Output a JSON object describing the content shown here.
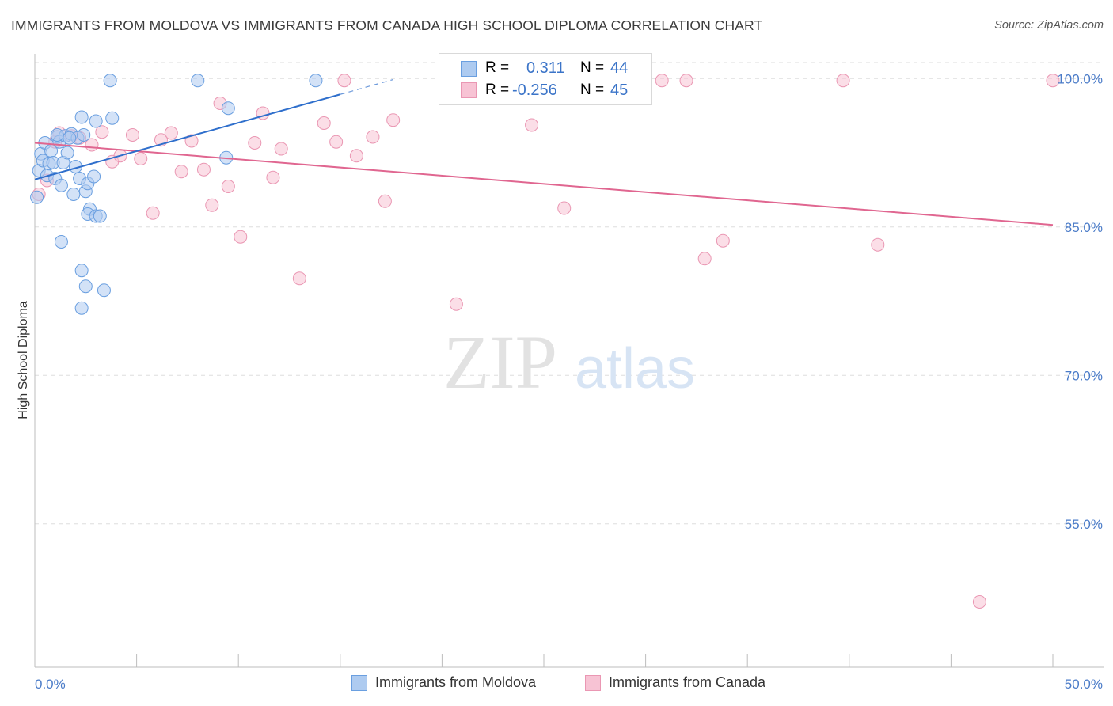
{
  "title": "IMMIGRANTS FROM MOLDOVA VS IMMIGRANTS FROM CANADA HIGH SCHOOL DIPLOMA CORRELATION CHART",
  "source": "Source: ZipAtlas.com",
  "watermark": {
    "zip": "ZIP",
    "atlas": "atlas"
  },
  "legend": {
    "rows": [
      {
        "r_label": "R =",
        "r_value": "0.311",
        "n_label": "N =",
        "n_value": "44"
      },
      {
        "r_label": "R =",
        "r_value": "-0.256",
        "n_label": "N =",
        "n_value": "45"
      }
    ]
  },
  "colors": {
    "moldova_fill": "#aecbf0",
    "moldova_stroke": "#6a9fe0",
    "moldova_line": "#2f6fcc",
    "canada_fill": "#f7c3d4",
    "canada_stroke": "#ea97b3",
    "canada_line": "#e06690",
    "tick_text": "#4a7bc8"
  },
  "chart_data": {
    "type": "scatter",
    "title": "IMMIGRANTS FROM MOLDOVA VS IMMIGRANTS FROM CANADA HIGH SCHOOL DIPLOMA CORRELATION CHART",
    "xlabel": "",
    "ylabel": "High School Diploma",
    "xlim": [
      0,
      50
    ],
    "ylim": [
      40.5,
      102.5
    ],
    "x_tick_labels": [
      "0.0%",
      "50.0%"
    ],
    "y_ticks": [
      55,
      70,
      85,
      100
    ],
    "y_tick_labels": [
      "55.0%",
      "70.0%",
      "85.0%",
      "100.0%"
    ],
    "grid": true,
    "series": [
      {
        "name": "Immigrants from Moldova",
        "points": [
          [
            0.1,
            88.0
          ],
          [
            0.2,
            90.7
          ],
          [
            0.3,
            92.4
          ],
          [
            0.4,
            91.7
          ],
          [
            0.5,
            93.5
          ],
          [
            0.6,
            90.2
          ],
          [
            0.7,
            91.4
          ],
          [
            0.8,
            92.7
          ],
          [
            0.9,
            91.5
          ],
          [
            1.0,
            89.9
          ],
          [
            1.1,
            94.1
          ],
          [
            1.2,
            93.6
          ],
          [
            1.3,
            89.2
          ],
          [
            1.4,
            91.5
          ],
          [
            1.5,
            94.2
          ],
          [
            1.6,
            92.5
          ],
          [
            1.8,
            94.4
          ],
          [
            1.9,
            88.3
          ],
          [
            2.0,
            91.1
          ],
          [
            2.1,
            94.0
          ],
          [
            2.2,
            89.9
          ],
          [
            2.3,
            96.1
          ],
          [
            2.4,
            94.3
          ],
          [
            2.5,
            88.6
          ],
          [
            2.6,
            89.4
          ],
          [
            2.7,
            86.8
          ],
          [
            1.3,
            83.5
          ],
          [
            2.3,
            80.6
          ],
          [
            2.5,
            79.0
          ],
          [
            2.3,
            76.8
          ],
          [
            2.6,
            86.3
          ],
          [
            3.0,
            86.1
          ],
          [
            2.9,
            90.1
          ],
          [
            3.0,
            95.7
          ],
          [
            3.2,
            86.1
          ],
          [
            3.4,
            78.6
          ],
          [
            3.8,
            96.0
          ],
          [
            3.7,
            99.8
          ],
          [
            8.0,
            99.8
          ],
          [
            9.4,
            92.0
          ],
          [
            9.5,
            97.0
          ],
          [
            13.8,
            99.8
          ],
          [
            1.1,
            94.3
          ],
          [
            1.7,
            94.0
          ]
        ],
        "trend": {
          "x0": 0.0,
          "y0": 89.8,
          "x1": 15.0,
          "y1": 98.4,
          "dash_to_x": 17.6,
          "dash_to_y": 99.9
        }
      },
      {
        "name": "Immigrants from Canada",
        "points": [
          [
            0.2,
            88.3
          ],
          [
            0.6,
            89.7
          ],
          [
            1.0,
            93.6
          ],
          [
            1.8,
            94.2
          ],
          [
            2.2,
            94.0
          ],
          [
            2.8,
            93.3
          ],
          [
            3.3,
            94.6
          ],
          [
            3.8,
            91.6
          ],
          [
            4.2,
            92.2
          ],
          [
            4.8,
            94.3
          ],
          [
            5.2,
            91.9
          ],
          [
            5.8,
            86.4
          ],
          [
            6.2,
            93.8
          ],
          [
            6.7,
            94.5
          ],
          [
            7.2,
            90.6
          ],
          [
            7.7,
            93.7
          ],
          [
            8.3,
            90.8
          ],
          [
            8.7,
            87.2
          ],
          [
            9.1,
            97.5
          ],
          [
            9.5,
            89.1
          ],
          [
            10.1,
            84.0
          ],
          [
            10.8,
            93.5
          ],
          [
            11.2,
            96.5
          ],
          [
            11.7,
            90.0
          ],
          [
            12.1,
            92.9
          ],
          [
            13.0,
            79.8
          ],
          [
            14.2,
            95.5
          ],
          [
            14.8,
            93.6
          ],
          [
            15.2,
            99.8
          ],
          [
            15.8,
            92.2
          ],
          [
            16.6,
            94.1
          ],
          [
            17.2,
            87.6
          ],
          [
            17.6,
            95.8
          ],
          [
            20.7,
            77.2
          ],
          [
            24.4,
            95.3
          ],
          [
            26.0,
            86.9
          ],
          [
            30.8,
            99.8
          ],
          [
            32.0,
            99.8
          ],
          [
            32.9,
            81.8
          ],
          [
            33.8,
            83.6
          ],
          [
            39.7,
            99.8
          ],
          [
            41.4,
            83.2
          ],
          [
            50.0,
            99.8
          ],
          [
            46.4,
            47.1
          ],
          [
            1.2,
            94.5
          ]
        ],
        "trend": {
          "x0": 0.0,
          "y0": 93.5,
          "x1": 50.0,
          "y1": 85.2
        }
      }
    ]
  }
}
